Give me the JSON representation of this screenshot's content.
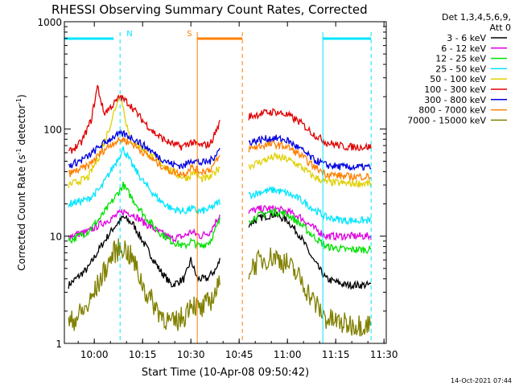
{
  "chart_data": {
    "type": "line",
    "title": "RHESSI Observing Summary Count Rates, Corrected",
    "xlabel": "Start Time (10-Apr-08 09:50:42)",
    "ylabel": "Corrected Count Rate (s",
    "ylabel_sup1": "-1",
    "ylabel_mid": " detector",
    "ylabel_sup2": "-1",
    "ylabel_end": ")",
    "x_scale": "time",
    "y_scale": "log",
    "xlim": [
      "09:50:42",
      "11:30:42"
    ],
    "ylim": [
      1,
      1000
    ],
    "x_ticks": [
      "10:00",
      "10:15",
      "10:30",
      "10:45",
      "11:00",
      "11:15",
      "11:30"
    ],
    "y_ticks": [
      "1",
      "10",
      "100",
      "1000"
    ],
    "grid": false,
    "legend_header": [
      "Det 1,3,4,5,6,9,",
      "Att 0"
    ],
    "legend_position": "right",
    "timestamp": "14-Oct-2021 07:44",
    "markers": [
      {
        "label": "N",
        "color": "#00e5ff",
        "bar": [
          "09:50:42",
          "10:06"
        ],
        "line_times": [
          "10:08"
        ],
        "bar2": [
          "11:11",
          "11:26"
        ],
        "line_times2": [
          "11:11",
          "11:26"
        ]
      },
      {
        "label": "S",
        "color": "#ff7f00",
        "bar": [
          "10:32",
          "10:46"
        ],
        "line_times": [
          "10:32",
          "10:46"
        ]
      }
    ],
    "gaps": [
      [
        "10:39",
        "10:48"
      ]
    ],
    "series": [
      {
        "name": "3 - 6 keV",
        "color": "#000000",
        "points": [
          [
            "09:52",
            3.5
          ],
          [
            "09:58",
            5
          ],
          [
            "10:02",
            8
          ],
          [
            "10:06",
            12
          ],
          [
            "10:09",
            15
          ],
          [
            "10:12",
            13
          ],
          [
            "10:16",
            8
          ],
          [
            "10:20",
            5
          ],
          [
            "10:24",
            3.5
          ],
          [
            "10:28",
            4
          ],
          [
            "10:30",
            6
          ],
          [
            "10:32",
            4
          ],
          [
            "10:35",
            4
          ],
          [
            "10:38",
            5
          ],
          [
            "10:39",
            6
          ],
          [
            "10:48",
            13
          ],
          [
            "10:52",
            15
          ],
          [
            "10:56",
            16
          ],
          [
            "11:00",
            14
          ],
          [
            "11:04",
            10
          ],
          [
            "11:08",
            6
          ],
          [
            "11:12",
            4
          ],
          [
            "11:18",
            3.5
          ],
          [
            "11:26",
            3.5
          ]
        ]
      },
      {
        "name": "6 - 12 keV",
        "color": "#e000e0",
        "points": [
          [
            "09:52",
            10
          ],
          [
            "09:58",
            11
          ],
          [
            "10:02",
            13
          ],
          [
            "10:06",
            15
          ],
          [
            "10:09",
            17
          ],
          [
            "10:12",
            16
          ],
          [
            "10:16",
            13
          ],
          [
            "10:20",
            11
          ],
          [
            "10:24",
            9.5
          ],
          [
            "10:28",
            10
          ],
          [
            "10:30",
            11
          ],
          [
            "10:33",
            10
          ],
          [
            "10:36",
            11
          ],
          [
            "10:39",
            16
          ],
          [
            "10:48",
            17
          ],
          [
            "10:52",
            18
          ],
          [
            "10:56",
            18
          ],
          [
            "11:00",
            17
          ],
          [
            "11:04",
            15
          ],
          [
            "11:08",
            12
          ],
          [
            "11:12",
            10
          ],
          [
            "11:18",
            10
          ],
          [
            "11:26",
            10
          ]
        ]
      },
      {
        "name": "12 - 25 keV",
        "color": "#00e000",
        "points": [
          [
            "09:52",
            9
          ],
          [
            "09:58",
            11
          ],
          [
            "10:02",
            15
          ],
          [
            "10:06",
            22
          ],
          [
            "10:09",
            30
          ],
          [
            "10:12",
            22
          ],
          [
            "10:16",
            15
          ],
          [
            "10:20",
            11
          ],
          [
            "10:24",
            9
          ],
          [
            "10:28",
            8
          ],
          [
            "10:30",
            9
          ],
          [
            "10:33",
            8
          ],
          [
            "10:36",
            9
          ],
          [
            "10:39",
            14
          ],
          [
            "10:48",
            14
          ],
          [
            "10:52",
            16
          ],
          [
            "10:56",
            17
          ],
          [
            "11:00",
            16
          ],
          [
            "11:04",
            13
          ],
          [
            "11:08",
            10
          ],
          [
            "11:12",
            8
          ],
          [
            "11:18",
            7.5
          ],
          [
            "11:26",
            7.5
          ]
        ]
      },
      {
        "name": "25 - 50 keV",
        "color": "#00e5ff",
        "points": [
          [
            "09:52",
            20
          ],
          [
            "09:58",
            22
          ],
          [
            "10:02",
            28
          ],
          [
            "10:06",
            45
          ],
          [
            "10:09",
            65
          ],
          [
            "10:12",
            45
          ],
          [
            "10:16",
            30
          ],
          [
            "10:20",
            22
          ],
          [
            "10:24",
            18
          ],
          [
            "10:28",
            17
          ],
          [
            "10:30",
            18
          ],
          [
            "10:33",
            17
          ],
          [
            "10:36",
            18
          ],
          [
            "10:39",
            21
          ],
          [
            "10:48",
            24
          ],
          [
            "10:52",
            26
          ],
          [
            "10:56",
            27
          ],
          [
            "11:00",
            25
          ],
          [
            "11:04",
            22
          ],
          [
            "11:08",
            18
          ],
          [
            "11:12",
            15
          ],
          [
            "11:18",
            14
          ],
          [
            "11:26",
            14
          ]
        ]
      },
      {
        "name": "50 - 100 keV",
        "color": "#e0d000",
        "points": [
          [
            "09:52",
            30
          ],
          [
            "09:58",
            35
          ],
          [
            "10:02",
            60
          ],
          [
            "10:05",
            110
          ],
          [
            "10:08",
            220
          ],
          [
            "10:11",
            80
          ],
          [
            "10:14",
            70
          ],
          [
            "10:18",
            55
          ],
          [
            "10:22",
            45
          ],
          [
            "10:26",
            37
          ],
          [
            "10:29",
            35
          ],
          [
            "10:31",
            40
          ],
          [
            "10:33",
            34
          ],
          [
            "10:36",
            35
          ],
          [
            "10:39",
            45
          ],
          [
            "10:48",
            45
          ],
          [
            "10:52",
            50
          ],
          [
            "10:56",
            55
          ],
          [
            "11:00",
            52
          ],
          [
            "11:04",
            45
          ],
          [
            "11:08",
            36
          ],
          [
            "11:12",
            32
          ],
          [
            "11:18",
            31
          ],
          [
            "11:26",
            31
          ]
        ]
      },
      {
        "name": "100 - 300 keV",
        "color": "#e00000",
        "points": [
          [
            "09:52",
            60
          ],
          [
            "09:56",
            75
          ],
          [
            "09:59",
            120
          ],
          [
            "10:01",
            250
          ],
          [
            "10:03",
            140
          ],
          [
            "10:06",
            170
          ],
          [
            "10:08",
            200
          ],
          [
            "10:11",
            170
          ],
          [
            "10:15",
            120
          ],
          [
            "10:19",
            90
          ],
          [
            "10:23",
            75
          ],
          [
            "10:27",
            68
          ],
          [
            "10:30",
            75
          ],
          [
            "10:33",
            70
          ],
          [
            "10:36",
            72
          ],
          [
            "10:39",
            115
          ],
          [
            "10:48",
            130
          ],
          [
            "10:52",
            140
          ],
          [
            "10:56",
            145
          ],
          [
            "11:00",
            135
          ],
          [
            "11:04",
            115
          ],
          [
            "11:08",
            90
          ],
          [
            "11:12",
            75
          ],
          [
            "11:18",
            68
          ],
          [
            "11:26",
            68
          ]
        ]
      },
      {
        "name": "300 - 800 keV",
        "color": "#0000e0",
        "points": [
          [
            "09:52",
            45
          ],
          [
            "09:58",
            55
          ],
          [
            "10:02",
            70
          ],
          [
            "10:06",
            85
          ],
          [
            "10:09",
            90
          ],
          [
            "10:12",
            82
          ],
          [
            "10:16",
            68
          ],
          [
            "10:20",
            55
          ],
          [
            "10:24",
            47
          ],
          [
            "10:28",
            45
          ],
          [
            "10:30",
            52
          ],
          [
            "10:33",
            48
          ],
          [
            "10:36",
            50
          ],
          [
            "10:39",
            65
          ],
          [
            "10:48",
            75
          ],
          [
            "10:52",
            80
          ],
          [
            "10:56",
            82
          ],
          [
            "11:00",
            78
          ],
          [
            "11:04",
            65
          ],
          [
            "11:08",
            52
          ],
          [
            "11:12",
            46
          ],
          [
            "11:18",
            44
          ],
          [
            "11:26",
            44
          ]
        ]
      },
      {
        "name": "800 - 7000 keV",
        "color": "#ff7f00",
        "points": [
          [
            "09:52",
            38
          ],
          [
            "09:58",
            45
          ],
          [
            "10:02",
            60
          ],
          [
            "10:06",
            75
          ],
          [
            "10:09",
            80
          ],
          [
            "10:12",
            72
          ],
          [
            "10:16",
            58
          ],
          [
            "10:20",
            47
          ],
          [
            "10:24",
            40
          ],
          [
            "10:28",
            38
          ],
          [
            "10:30",
            44
          ],
          [
            "10:33",
            40
          ],
          [
            "10:36",
            42
          ],
          [
            "10:39",
            55
          ],
          [
            "10:48",
            65
          ],
          [
            "10:52",
            70
          ],
          [
            "10:56",
            72
          ],
          [
            "11:00",
            68
          ],
          [
            "11:04",
            57
          ],
          [
            "11:08",
            45
          ],
          [
            "11:12",
            38
          ],
          [
            "11:18",
            36
          ],
          [
            "11:26",
            36
          ]
        ]
      },
      {
        "name": "7000 - 15000 keV",
        "color": "#808000",
        "points": [
          [
            "09:52",
            1.5
          ],
          [
            "09:58",
            2.2
          ],
          [
            "10:02",
            4
          ],
          [
            "10:06",
            7
          ],
          [
            "10:09",
            8
          ],
          [
            "10:12",
            6
          ],
          [
            "10:16",
            3
          ],
          [
            "10:20",
            2
          ],
          [
            "10:24",
            1.5
          ],
          [
            "10:28",
            1.8
          ],
          [
            "10:30",
            2.5
          ],
          [
            "10:33",
            2
          ],
          [
            "10:36",
            2.5
          ],
          [
            "10:39",
            3.5
          ],
          [
            "10:48",
            5
          ],
          [
            "10:52",
            6
          ],
          [
            "10:56",
            6.5
          ],
          [
            "11:00",
            5.5
          ],
          [
            "11:04",
            4
          ],
          [
            "11:08",
            2.5
          ],
          [
            "11:12",
            1.7
          ],
          [
            "11:18",
            1.5
          ],
          [
            "11:26",
            1.5
          ]
        ]
      }
    ]
  }
}
